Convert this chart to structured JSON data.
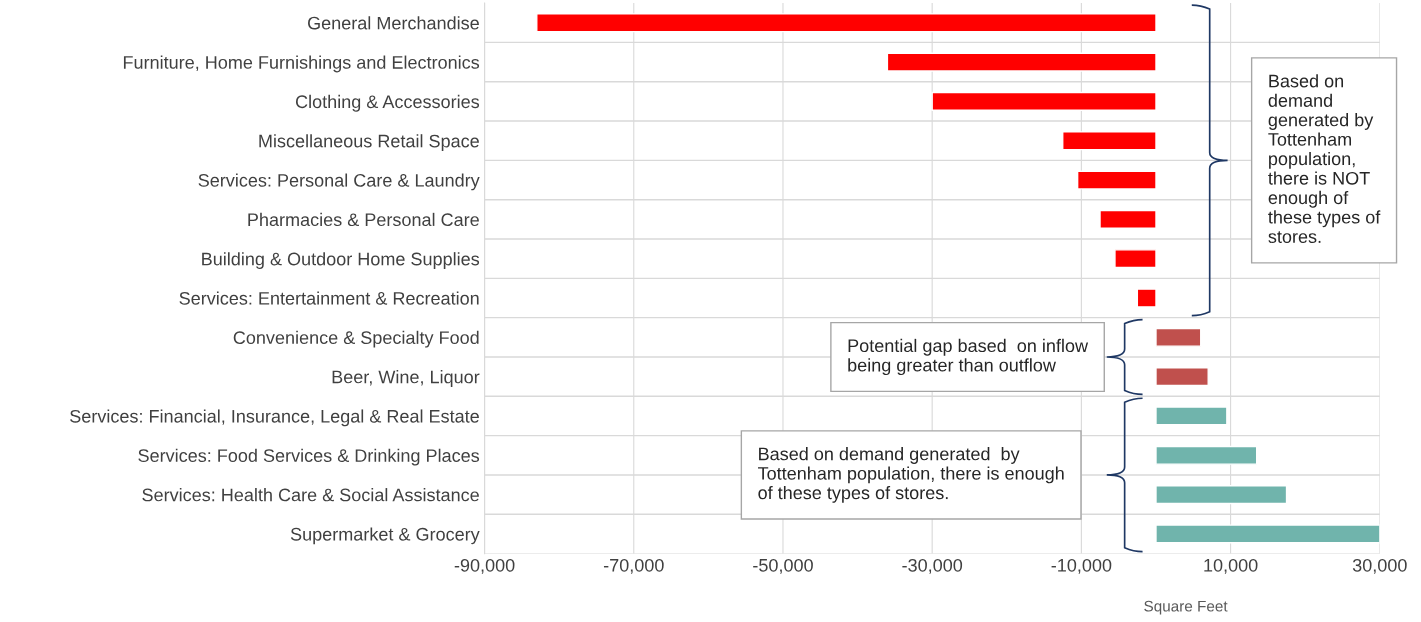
{
  "chart_data": {
    "type": "bar",
    "orientation": "horizontal",
    "xlabel": "Square Feet",
    "categories": [
      "General Merchandise",
      "Furniture, Home Furnishings and Electronics",
      "Clothing & Accessories",
      "Miscellaneous Retail Space",
      "Services: Personal Care & Laundry",
      "Pharmacies & Personal Care",
      "Building & Outdoor Home Supplies",
      "Services: Entertainment & Recreation",
      "Convenience & Specialty Food",
      "Beer, Wine, Liquor",
      "Services: Financial, Insurance, Legal & Real Estate",
      "Services: Food Services & Drinking Places",
      "Services: Health Care & Social Assistance",
      "Supermarket & Grocery"
    ],
    "values": [
      -83000,
      -36000,
      -30000,
      -12500,
      -10500,
      -7500,
      -5500,
      -2500,
      6000,
      7000,
      9500,
      13500,
      17500,
      30000
    ],
    "colors": [
      "#ff0000",
      "#ff0000",
      "#ff0000",
      "#ff0000",
      "#ff0000",
      "#ff0000",
      "#ff0000",
      "#ff0000",
      "#c0504d",
      "#c0504d",
      "#70b4ac",
      "#70b4ac",
      "#70b4ac",
      "#70b4ac"
    ],
    "xlim": [
      -90000,
      30000
    ],
    "xticks": [
      {
        "value": -90000,
        "label": "-90,000"
      },
      {
        "value": -70000,
        "label": "-70,000"
      },
      {
        "value": -50000,
        "label": "-50,000"
      },
      {
        "value": -30000,
        "label": "-30,000"
      },
      {
        "value": -10000,
        "label": "-10,000"
      },
      {
        "value": 10000,
        "label": "10,000"
      },
      {
        "value": 30000,
        "label": "30,000"
      }
    ],
    "grid": true,
    "annotations": [
      "Based on demand generated by Tottenham population, there is NOT enough of these types of stores.",
      "Potential gap based  on inflow being greater than outflow",
      "Based on demand generated  by Tottenham population, there is enough of these types of stores."
    ]
  }
}
